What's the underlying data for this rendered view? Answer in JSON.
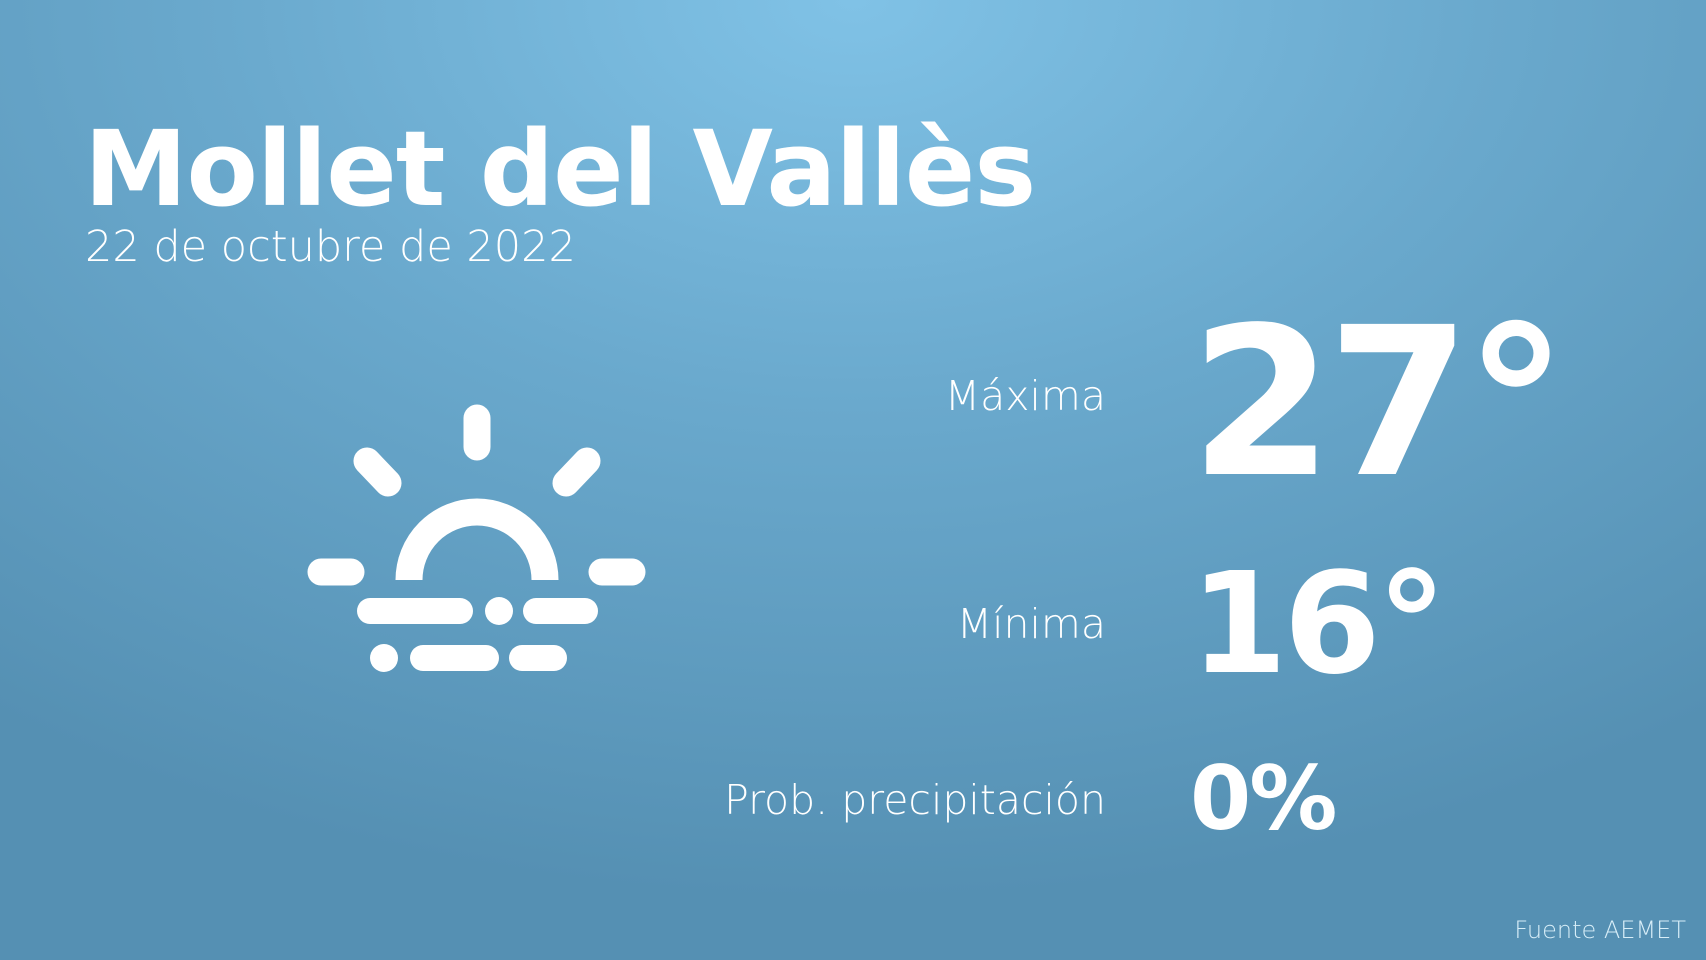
{
  "header": {
    "city": "Mollet del Vallès",
    "date": "22 de octubre de 2022"
  },
  "weather": {
    "icon": "sunrise-fog-icon",
    "max_label": "Máxima",
    "max_value": "27°",
    "min_label": "Mínima",
    "min_value": "16°",
    "precip_label": "Prob. precipitación",
    "precip_value": "0%"
  },
  "footer": {
    "source": "Fuente AEMET"
  },
  "colors": {
    "background_top": "#80c2e6",
    "background_bottom": "#5590b3",
    "text": "#ffffff"
  }
}
